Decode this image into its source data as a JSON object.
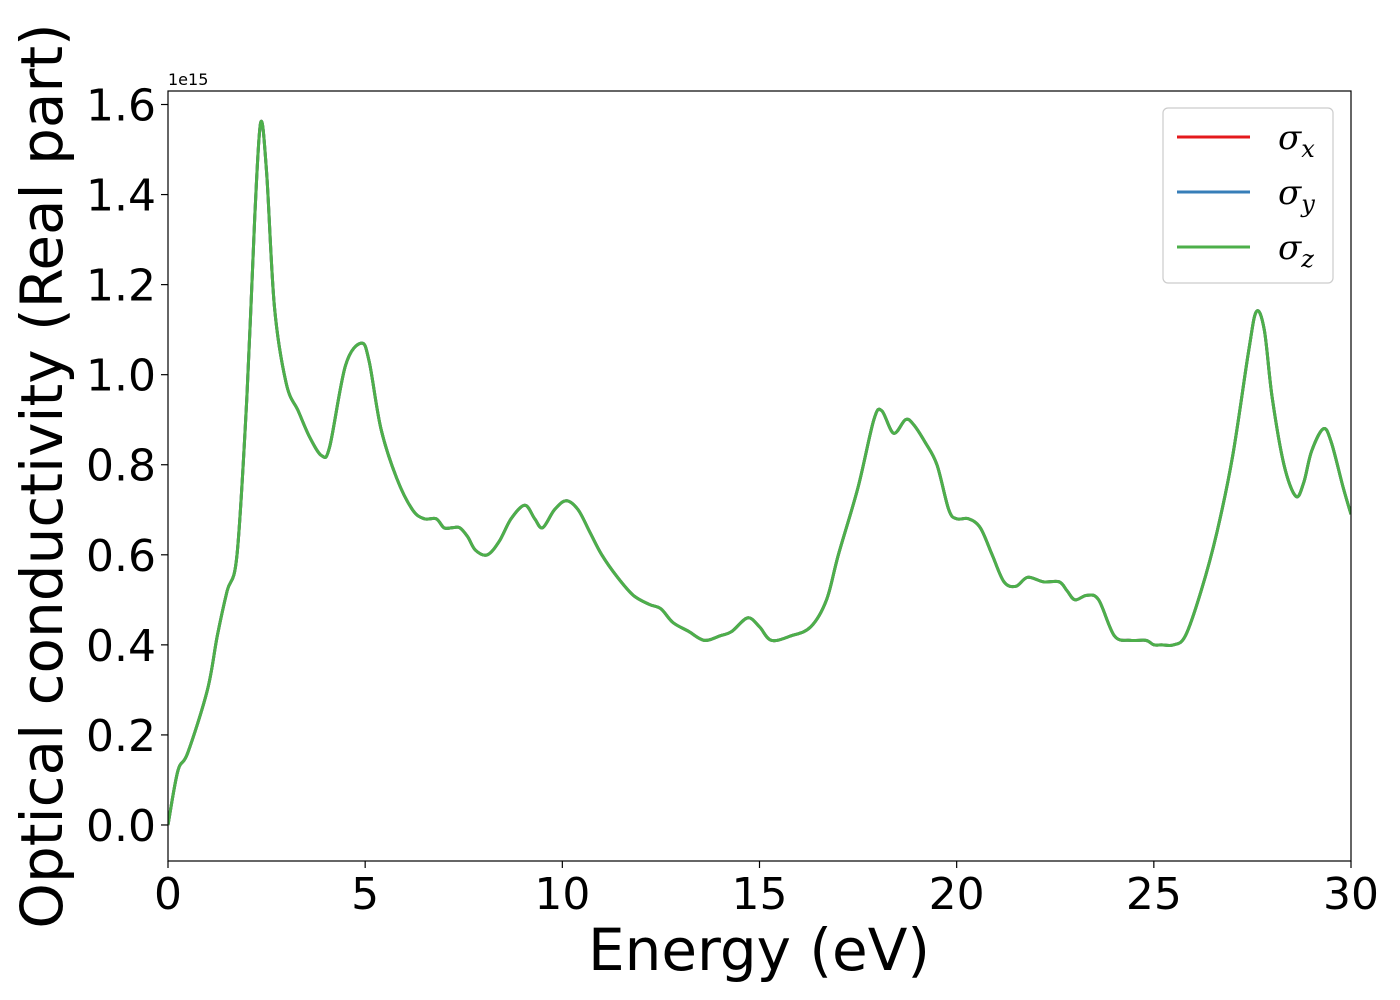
{
  "chart_data": {
    "type": "line",
    "xlabel": "Energy (eV)",
    "ylabel": "Optical conductivity (Real part)",
    "y_offset_label": "1e15",
    "xlim": [
      0,
      30
    ],
    "ylim": [
      -0.08,
      1.63
    ],
    "x_ticks": [
      0,
      5,
      10,
      15,
      20,
      25,
      30
    ],
    "y_ticks": [
      0.0,
      0.2,
      0.4,
      0.6,
      0.8,
      1.0,
      1.2,
      1.4,
      1.6
    ],
    "x_tick_labels": [
      "0",
      "5",
      "10",
      "15",
      "20",
      "25",
      "30"
    ],
    "y_tick_labels": [
      "0.0",
      "0.2",
      "0.4",
      "0.6",
      "0.8",
      "1.0",
      "1.2",
      "1.4",
      "1.6"
    ],
    "grid": false,
    "legend_position": "top-right",
    "x": [
      0,
      0.25,
      0.5,
      1.0,
      1.25,
      1.5,
      1.75,
      2.0,
      2.2,
      2.35,
      2.5,
      2.7,
      3.0,
      3.3,
      3.6,
      3.9,
      4.1,
      4.5,
      4.9,
      5.1,
      5.4,
      5.8,
      6.2,
      6.5,
      6.8,
      7.0,
      7.2,
      7.4,
      7.6,
      7.8,
      8.1,
      8.4,
      8.7,
      9.05,
      9.3,
      9.5,
      9.8,
      10.1,
      10.4,
      10.7,
      11.0,
      11.4,
      11.8,
      12.2,
      12.5,
      12.8,
      13.2,
      13.6,
      14.0,
      14.3,
      14.7,
      15.0,
      15.3,
      15.8,
      16.3,
      16.7,
      17.0,
      17.5,
      17.9,
      18.1,
      18.4,
      18.7,
      18.9,
      19.2,
      19.5,
      19.8,
      20.0,
      20.3,
      20.6,
      20.9,
      21.2,
      21.5,
      21.8,
      22.2,
      22.6,
      22.8,
      23.0,
      23.3,
      23.6,
      24.0,
      24.4,
      24.8,
      25.0,
      25.2,
      25.5,
      25.8,
      26.2,
      26.6,
      27.0,
      27.4,
      27.6,
      27.8,
      28.0,
      28.3,
      28.6,
      28.8,
      29.0,
      29.3,
      29.5,
      29.8,
      30.0
    ],
    "series": [
      {
        "name": "σx",
        "color": "#e41a1c",
        "values": [
          0.0,
          0.12,
          0.16,
          0.3,
          0.42,
          0.52,
          0.6,
          0.95,
          1.35,
          1.56,
          1.45,
          1.15,
          0.98,
          0.92,
          0.86,
          0.82,
          0.84,
          1.02,
          1.07,
          1.03,
          0.88,
          0.77,
          0.7,
          0.68,
          0.68,
          0.66,
          0.66,
          0.66,
          0.64,
          0.61,
          0.6,
          0.63,
          0.68,
          0.71,
          0.68,
          0.66,
          0.7,
          0.72,
          0.7,
          0.65,
          0.6,
          0.55,
          0.51,
          0.49,
          0.48,
          0.45,
          0.43,
          0.41,
          0.42,
          0.43,
          0.46,
          0.44,
          0.41,
          0.42,
          0.44,
          0.5,
          0.6,
          0.75,
          0.9,
          0.92,
          0.87,
          0.9,
          0.89,
          0.85,
          0.8,
          0.7,
          0.68,
          0.68,
          0.66,
          0.6,
          0.54,
          0.53,
          0.55,
          0.54,
          0.54,
          0.52,
          0.5,
          0.51,
          0.5,
          0.42,
          0.41,
          0.41,
          0.4,
          0.4,
          0.4,
          0.42,
          0.52,
          0.65,
          0.82,
          1.05,
          1.14,
          1.1,
          0.95,
          0.8,
          0.73,
          0.76,
          0.83,
          0.88,
          0.85,
          0.75,
          0.69
        ]
      },
      {
        "name": "σy",
        "color": "#377eb8",
        "values": [
          0.0,
          0.12,
          0.16,
          0.3,
          0.42,
          0.52,
          0.6,
          0.95,
          1.35,
          1.56,
          1.45,
          1.15,
          0.98,
          0.92,
          0.86,
          0.82,
          0.84,
          1.02,
          1.07,
          1.03,
          0.88,
          0.77,
          0.7,
          0.68,
          0.68,
          0.66,
          0.66,
          0.66,
          0.64,
          0.61,
          0.6,
          0.63,
          0.68,
          0.71,
          0.68,
          0.66,
          0.7,
          0.72,
          0.7,
          0.65,
          0.6,
          0.55,
          0.51,
          0.49,
          0.48,
          0.45,
          0.43,
          0.41,
          0.42,
          0.43,
          0.46,
          0.44,
          0.41,
          0.42,
          0.44,
          0.5,
          0.6,
          0.75,
          0.9,
          0.92,
          0.87,
          0.9,
          0.89,
          0.85,
          0.8,
          0.7,
          0.68,
          0.68,
          0.66,
          0.6,
          0.54,
          0.53,
          0.55,
          0.54,
          0.54,
          0.52,
          0.5,
          0.51,
          0.5,
          0.42,
          0.41,
          0.41,
          0.4,
          0.4,
          0.4,
          0.42,
          0.52,
          0.65,
          0.82,
          1.05,
          1.14,
          1.1,
          0.95,
          0.8,
          0.73,
          0.76,
          0.83,
          0.88,
          0.85,
          0.75,
          0.69
        ]
      },
      {
        "name": "σz",
        "color": "#4daf4a",
        "values": [
          0.0,
          0.12,
          0.16,
          0.3,
          0.42,
          0.52,
          0.6,
          0.95,
          1.35,
          1.56,
          1.45,
          1.15,
          0.98,
          0.92,
          0.86,
          0.82,
          0.84,
          1.02,
          1.07,
          1.03,
          0.88,
          0.77,
          0.7,
          0.68,
          0.68,
          0.66,
          0.66,
          0.66,
          0.64,
          0.61,
          0.6,
          0.63,
          0.68,
          0.71,
          0.68,
          0.66,
          0.7,
          0.72,
          0.7,
          0.65,
          0.6,
          0.55,
          0.51,
          0.49,
          0.48,
          0.45,
          0.43,
          0.41,
          0.42,
          0.43,
          0.46,
          0.44,
          0.41,
          0.42,
          0.44,
          0.5,
          0.6,
          0.75,
          0.9,
          0.92,
          0.87,
          0.9,
          0.89,
          0.85,
          0.8,
          0.7,
          0.68,
          0.68,
          0.66,
          0.6,
          0.54,
          0.53,
          0.55,
          0.54,
          0.54,
          0.52,
          0.5,
          0.51,
          0.5,
          0.42,
          0.41,
          0.41,
          0.4,
          0.4,
          0.4,
          0.42,
          0.52,
          0.65,
          0.82,
          1.05,
          1.14,
          1.1,
          0.95,
          0.8,
          0.73,
          0.76,
          0.83,
          0.88,
          0.85,
          0.75,
          0.69
        ]
      }
    ],
    "legend": [
      {
        "symbol": "σ",
        "subscript": "x",
        "color": "#e41a1c"
      },
      {
        "symbol": "σ",
        "subscript": "y",
        "color": "#377eb8"
      },
      {
        "symbol": "σ",
        "subscript": "z",
        "color": "#4daf4a"
      }
    ]
  }
}
